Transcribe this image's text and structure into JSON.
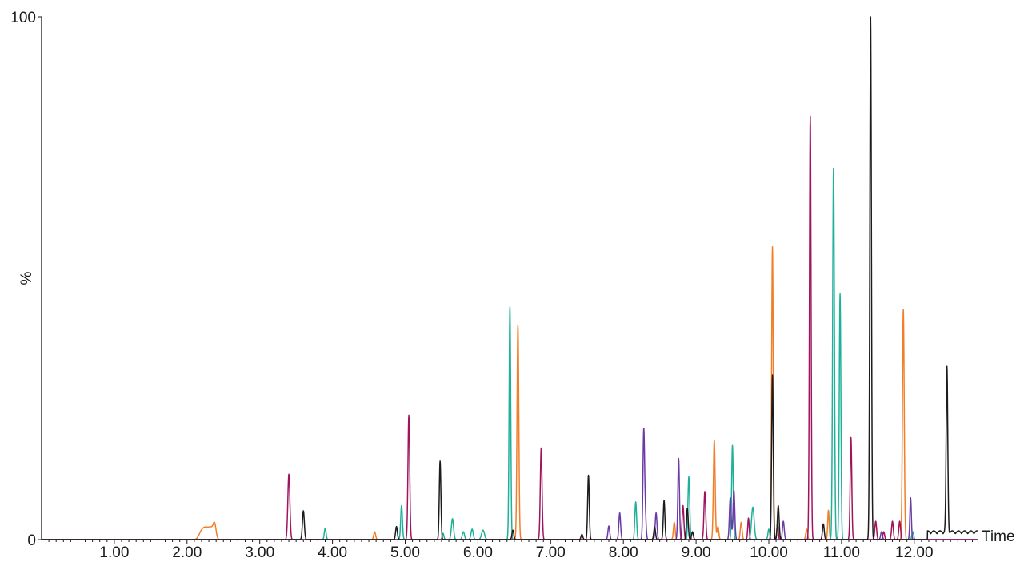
{
  "chart_data": {
    "type": "line",
    "title": "",
    "xlabel": "Time",
    "ylabel": "%",
    "xlim": [
      0,
      12.95
    ],
    "ylim": [
      0,
      100
    ],
    "y_tick_labels": [
      {
        "value": 0,
        "label": "0"
      },
      {
        "value": 100,
        "label": "100"
      }
    ],
    "x_tick_labels": [
      {
        "value": 1,
        "label": "1.00"
      },
      {
        "value": 2,
        "label": "2.00"
      },
      {
        "value": 3,
        "label": "3.00"
      },
      {
        "value": 4,
        "label": "4.00"
      },
      {
        "value": 5,
        "label": "5.00"
      },
      {
        "value": 6,
        "label": "6.00"
      },
      {
        "value": 7,
        "label": "7.00"
      },
      {
        "value": 8,
        "label": "8.00"
      },
      {
        "value": 9,
        "label": "9.00"
      },
      {
        "value": 10,
        "label": "10.00"
      },
      {
        "value": 11,
        "label": "11.00"
      },
      {
        "value": 12,
        "label": "12.00"
      }
    ],
    "minor_tick_step": 0.1,
    "grid": false,
    "legend": "none",
    "series": [
      {
        "color": "#f07f2a",
        "peaks": [
          {
            "t": 2.2,
            "h": 1.5,
            "w": 0.035
          },
          {
            "t": 2.26,
            "h": 1.8,
            "w": 0.035
          },
          {
            "t": 2.33,
            "h": 2.1,
            "w": 0.035
          },
          {
            "t": 2.38,
            "h": 2.5,
            "w": 0.02
          },
          {
            "t": 4.58,
            "h": 1.5,
            "w": 0.013
          },
          {
            "t": 6.55,
            "h": 41,
            "w": 0.012
          },
          {
            "t": 8.7,
            "h": 3.3,
            "w": 0.012
          },
          {
            "t": 9.25,
            "h": 19,
            "w": 0.012
          },
          {
            "t": 9.3,
            "h": 2.5,
            "w": 0.012
          },
          {
            "t": 9.62,
            "h": 3.3,
            "w": 0.012
          },
          {
            "t": 10.05,
            "h": 56,
            "w": 0.011
          },
          {
            "t": 10.52,
            "h": 2.0,
            "w": 0.012
          },
          {
            "t": 10.82,
            "h": 5.6,
            "w": 0.01
          },
          {
            "t": 11.85,
            "h": 44,
            "w": 0.012
          }
        ]
      },
      {
        "color": "#1fb09a",
        "peaks": [
          {
            "t": 3.9,
            "h": 2.2,
            "w": 0.012
          },
          {
            "t": 4.95,
            "h": 6.5,
            "w": 0.012
          },
          {
            "t": 5.52,
            "h": 1.2,
            "w": 0.012
          },
          {
            "t": 5.65,
            "h": 4.0,
            "w": 0.015
          },
          {
            "t": 5.8,
            "h": 1.5,
            "w": 0.015
          },
          {
            "t": 5.92,
            "h": 2.0,
            "w": 0.015
          },
          {
            "t": 6.07,
            "h": 1.8,
            "w": 0.02
          },
          {
            "t": 6.44,
            "h": 44.5,
            "w": 0.011
          },
          {
            "t": 8.17,
            "h": 7.2,
            "w": 0.012
          },
          {
            "t": 8.9,
            "h": 12,
            "w": 0.012
          },
          {
            "t": 9.5,
            "h": 18,
            "w": 0.011
          },
          {
            "t": 9.78,
            "h": 6.2,
            "w": 0.018
          },
          {
            "t": 10.0,
            "h": 2.0,
            "w": 0.012
          },
          {
            "t": 10.89,
            "h": 71,
            "w": 0.012
          },
          {
            "t": 10.98,
            "h": 47,
            "w": 0.011
          },
          {
            "t": 11.98,
            "h": 1.5,
            "w": 0.012
          }
        ]
      },
      {
        "color": "#6a3aa6",
        "peaks": [
          {
            "t": 7.8,
            "h": 2.6,
            "w": 0.012
          },
          {
            "t": 7.95,
            "h": 5.1,
            "w": 0.012
          },
          {
            "t": 8.28,
            "h": 20,
            "w": 0.011
          },
          {
            "t": 8.3,
            "h": 5.0,
            "w": 0.012
          },
          {
            "t": 8.45,
            "h": 5.1,
            "w": 0.012
          },
          {
            "t": 8.76,
            "h": 15.5,
            "w": 0.011
          },
          {
            "t": 9.47,
            "h": 8.0,
            "w": 0.012
          },
          {
            "t": 9.52,
            "h": 9.4,
            "w": 0.012
          },
          {
            "t": 10.2,
            "h": 3.5,
            "w": 0.012
          },
          {
            "t": 11.55,
            "h": 1.5,
            "w": 0.012
          },
          {
            "t": 11.95,
            "h": 8.0,
            "w": 0.01
          }
        ]
      },
      {
        "color": "#a0145f",
        "peaks": [
          {
            "t": 3.4,
            "h": 12.5,
            "w": 0.014
          },
          {
            "t": 5.05,
            "h": 23.8,
            "w": 0.012
          },
          {
            "t": 6.87,
            "h": 17.5,
            "w": 0.012
          },
          {
            "t": 8.82,
            "h": 6.5,
            "w": 0.012
          },
          {
            "t": 9.12,
            "h": 9.2,
            "w": 0.012
          },
          {
            "t": 9.72,
            "h": 4.1,
            "w": 0.01
          },
          {
            "t": 10.12,
            "h": 3.0,
            "w": 0.01
          },
          {
            "t": 10.57,
            "h": 81,
            "w": 0.011
          },
          {
            "t": 11.13,
            "h": 19.5,
            "w": 0.011
          },
          {
            "t": 11.47,
            "h": 3.5,
            "w": 0.012
          },
          {
            "t": 11.58,
            "h": 1.5,
            "w": 0.012
          },
          {
            "t": 11.7,
            "h": 3.5,
            "w": 0.012
          },
          {
            "t": 11.8,
            "h": 3.5,
            "w": 0.012
          }
        ]
      },
      {
        "color": "#1c1c1c",
        "peaks": [
          {
            "t": 3.6,
            "h": 5.5,
            "w": 0.013
          },
          {
            "t": 4.88,
            "h": 2.5,
            "w": 0.012
          },
          {
            "t": 5.48,
            "h": 15,
            "w": 0.011
          },
          {
            "t": 6.48,
            "h": 1.8,
            "w": 0.012
          },
          {
            "t": 7.43,
            "h": 1.0,
            "w": 0.012
          },
          {
            "t": 7.52,
            "h": 12.3,
            "w": 0.011
          },
          {
            "t": 8.43,
            "h": 2.4,
            "w": 0.012
          },
          {
            "t": 8.56,
            "h": 7.5,
            "w": 0.011
          },
          {
            "t": 8.88,
            "h": 6.0,
            "w": 0.012
          },
          {
            "t": 8.95,
            "h": 1.5,
            "w": 0.012
          },
          {
            "t": 10.05,
            "h": 31.5,
            "w": 0.011
          },
          {
            "t": 10.13,
            "h": 6.5,
            "w": 0.012
          },
          {
            "t": 10.75,
            "h": 3.0,
            "w": 0.012
          },
          {
            "t": 11.4,
            "h": 100,
            "w": 0.011
          },
          {
            "t": 12.45,
            "h": 31.5,
            "w": 0.011
          }
        ],
        "plateau": {
          "t_start": 12.18,
          "t_end": 12.95,
          "h": 1.4
        }
      }
    ]
  }
}
